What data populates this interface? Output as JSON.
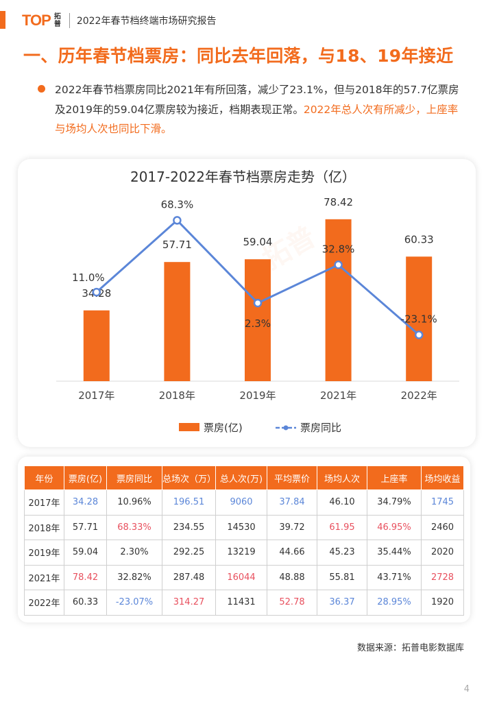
{
  "header": {
    "logo_text": "TOP",
    "logo_cn_1": "拓",
    "logo_cn_2": "普",
    "title": "2022年春节档终端市场研究报告"
  },
  "page_title": "一、历年春节档票房：同比去年回落，与18、19年接近",
  "bullet": {
    "text_normal": "2022年春节档票房同比2021年有所回落，减少了23.1%，但与2018年的57.7亿票房及2019年的59.04亿票房较为接近，档期表现正常。",
    "text_highlight": "2022年总人次有所减少，上座率与场均人次也同比下滑。"
  },
  "chart_data": {
    "type": "bar",
    "title": "2017-2022年春节档票房走势（亿）",
    "categories": [
      "2017年",
      "2018年",
      "2019年",
      "2021年",
      "2022年"
    ],
    "series": [
      {
        "name": "票房(亿)",
        "kind": "bar",
        "values": [
          34.28,
          57.71,
          59.04,
          78.42,
          60.33
        ],
        "labels": [
          "34.28",
          "57.71",
          "59.04",
          "78.42",
          "60.33"
        ]
      },
      {
        "name": "票房同比",
        "kind": "line",
        "values": [
          11.0,
          68.3,
          2.3,
          32.8,
          -23.1
        ],
        "labels": [
          "11.0%",
          "68.3%",
          "2.3%",
          "32.8%",
          "-23.1%"
        ]
      }
    ],
    "bar_ylim": [
      0,
      85
    ],
    "line_ylim": [
      -60,
      80
    ],
    "legend_position": "bottom",
    "colors": {
      "bar": "#f26b1d",
      "line": "#5b86d8"
    }
  },
  "table": {
    "headers": [
      "年份",
      "票房(亿)",
      "票房同比",
      "总场次（万）",
      "总人次(万)",
      "平均票价",
      "场均人次",
      "上座率",
      "场均收益"
    ],
    "rows": [
      [
        "2017年",
        "34.28",
        "10.96%",
        "196.51",
        "9060",
        "37.84",
        "46.10",
        "34.79%",
        "1745"
      ],
      [
        "2018年",
        "57.71",
        "68.33%",
        "234.55",
        "14530",
        "39.72",
        "61.95",
        "46.95%",
        "2460"
      ],
      [
        "2019年",
        "59.04",
        "2.30%",
        "292.25",
        "13219",
        "44.66",
        "45.23",
        "35.44%",
        "2020"
      ],
      [
        "2021年",
        "78.42",
        "32.82%",
        "287.48",
        "16044",
        "48.88",
        "55.81",
        "43.71%",
        "2728"
      ],
      [
        "2022年",
        "60.33",
        "-23.07%",
        "314.27",
        "11431",
        "52.78",
        "36.37",
        "28.95%",
        "1920"
      ]
    ],
    "cell_colors": [
      [
        "",
        "blue",
        "",
        "blue",
        "blue",
        "blue",
        "",
        "",
        "blue"
      ],
      [
        "",
        "",
        "red",
        "",
        "",
        "",
        "red",
        "red",
        ""
      ],
      [
        "",
        "",
        "",
        "",
        "",
        "",
        "",
        "",
        ""
      ],
      [
        "",
        "red",
        "",
        "",
        "red",
        "",
        "",
        "",
        "red"
      ],
      [
        "",
        "",
        "blue",
        "red",
        "",
        "red",
        "blue",
        "blue",
        ""
      ]
    ]
  },
  "source": "数据来源：拓普电影数据库",
  "page_number": "4"
}
